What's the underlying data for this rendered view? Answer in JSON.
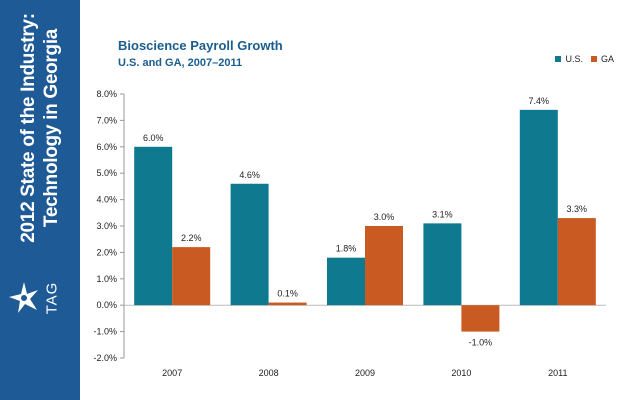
{
  "sidebar": {
    "title_lines": [
      "2012 State of the Industry:",
      "Technology in Georgia"
    ],
    "logo_text": "TAG",
    "background": "#1e5a96",
    "logo_icon": "star-burst-icon"
  },
  "chart_data": {
    "type": "bar",
    "title": "Bioscience Payroll Growth",
    "subtitle": "U.S. and GA, 2007–2011",
    "categories": [
      "2007",
      "2008",
      "2009",
      "2010",
      "2011"
    ],
    "series": [
      {
        "name": "U.S.",
        "color": "#0f7a8f",
        "values": [
          6.0,
          4.6,
          1.8,
          3.1,
          7.4
        ],
        "labels": [
          "6.0%",
          "4.6%",
          "1.8%",
          "3.1%",
          "7.4%"
        ]
      },
      {
        "name": "GA",
        "color": "#c85a22",
        "values": [
          2.2,
          0.1,
          3.0,
          -1.0,
          3.3
        ],
        "labels": [
          "2.2%",
          "0.1%",
          "3.0%",
          "-1.0%",
          "3.3%"
        ]
      }
    ],
    "y_ticks": [
      "8.0%",
      "7.0%",
      "6.0%",
      "5.0%",
      "4.0%",
      "3.0%",
      "2.0%",
      "1.0%",
      "0.0%",
      "-1.0%",
      "-2.0%"
    ],
    "ylim": [
      -2,
      8
    ],
    "grid": false,
    "legend_position": "top-right"
  }
}
